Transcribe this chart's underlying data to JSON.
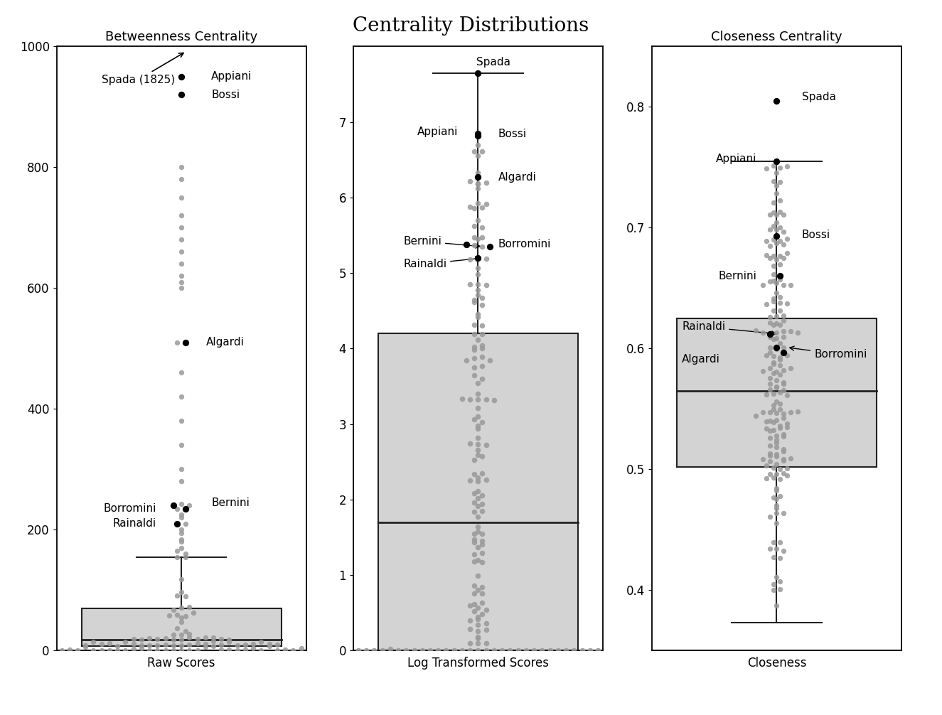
{
  "title": "Centrality Distributions",
  "title_fontsize": 20,
  "subtitle_betweenness": "Betweenness Centrality",
  "subtitle_closeness": "Closeness Centrality",
  "raw_xlabel": "Raw Scores",
  "log_xlabel": "Log Transformed Scores",
  "close_xlabel": "Closeness",
  "box_color": "#d3d3d3",
  "box_edgecolor": "#222222",
  "dot_color": "#999999",
  "highlight_color": "#000000",
  "raw_ylim": [
    0,
    1000
  ],
  "raw_yticks": [
    0,
    200,
    400,
    600,
    800,
    1000
  ],
  "raw_Q1": 8,
  "raw_median": 18,
  "raw_Q3": 70,
  "raw_whisker_high": 155,
  "raw_whisker_low": 0,
  "log_ylim": [
    0,
    8
  ],
  "log_yticks": [
    0,
    1,
    2,
    3,
    4,
    5,
    6,
    7
  ],
  "log_Q1": 0.0,
  "log_median": 1.7,
  "log_Q3": 4.2,
  "log_whisker_high": 7.65,
  "log_whisker_low": 0.0,
  "close_ylim": [
    0.35,
    0.85
  ],
  "close_yticks": [
    0.4,
    0.5,
    0.6,
    0.7,
    0.8
  ],
  "close_Q1": 0.502,
  "close_median": 0.565,
  "close_Q3": 0.625,
  "close_whisker_high": 0.755,
  "close_whisker_low": 0.373,
  "label_fontsize": 11,
  "tick_fontsize": 12,
  "xlabel_fontsize": 12
}
